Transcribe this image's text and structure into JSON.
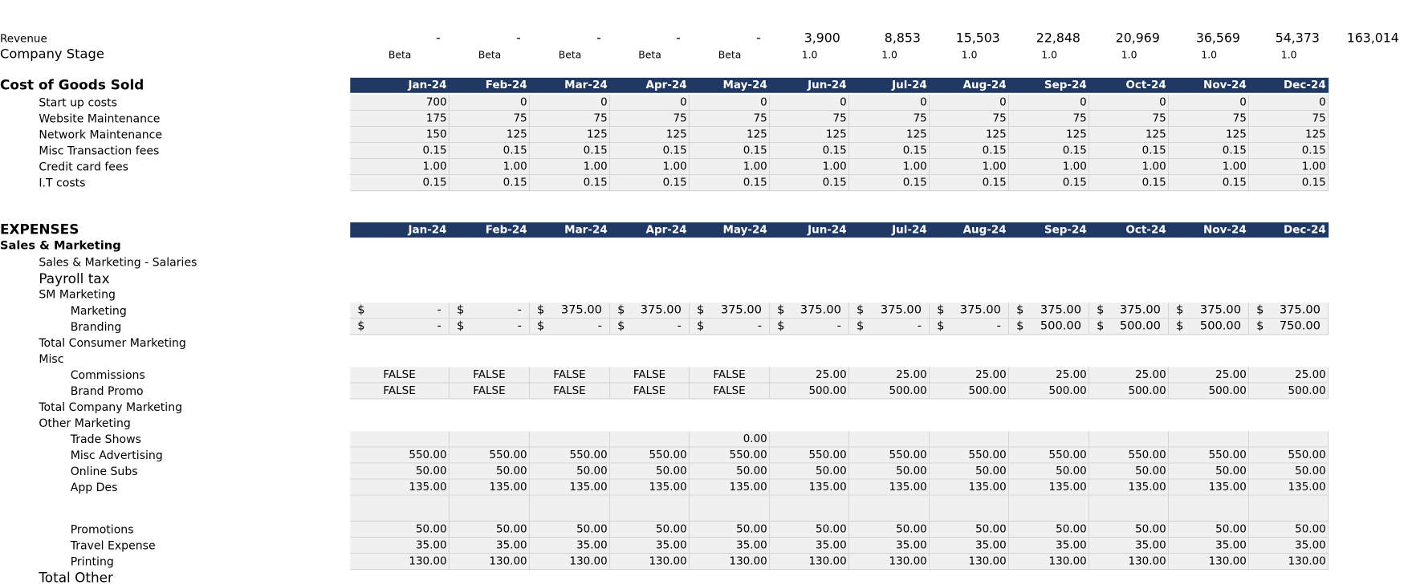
{
  "top": [
    {
      "label": "Revenue",
      "values": [
        "-",
        "-",
        "-",
        "-",
        "-",
        "3,900",
        "8,853",
        "15,503",
        "22,848",
        "20,969",
        "36,569",
        "54,373",
        "163,014"
      ]
    },
    {
      "label": "Company Stage",
      "values": [
        "Beta",
        "Beta",
        "Beta",
        "Beta",
        "Beta",
        "1.0",
        "1.0",
        "1.0",
        "1.0",
        "1.0",
        "1.0",
        "1.0"
      ]
    }
  ],
  "months": [
    "Jan-24",
    "Feb-24",
    "Mar-24",
    "Apr-24",
    "May-24",
    "Jun-24",
    "Jul-24",
    "Aug-24",
    "Sep-24",
    "Oct-24",
    "Nov-24",
    "Dec-24"
  ],
  "cogs": {
    "title": "Cost of Goods Sold",
    "rows": [
      {
        "label": "Start up costs",
        "values": [
          "700",
          "0",
          "0",
          "0",
          "0",
          "0",
          "0",
          "0",
          "0",
          "0",
          "0",
          "0"
        ]
      },
      {
        "label": "Website Maintenance",
        "values": [
          "175",
          "75",
          "75",
          "75",
          "75",
          "75",
          "75",
          "75",
          "75",
          "75",
          "75",
          "75"
        ]
      },
      {
        "label": "Network Maintenance",
        "values": [
          "150",
          "125",
          "125",
          "125",
          "125",
          "125",
          "125",
          "125",
          "125",
          "125",
          "125",
          "125"
        ]
      },
      {
        "label": "Misc Transaction fees",
        "values": [
          "0.15",
          "0.15",
          "0.15",
          "0.15",
          "0.15",
          "0.15",
          "0.15",
          "0.15",
          "0.15",
          "0.15",
          "0.15",
          "0.15"
        ]
      },
      {
        "label": "Credit card fees",
        "values": [
          "1.00",
          "1.00",
          "1.00",
          "1.00",
          "1.00",
          "1.00",
          "1.00",
          "1.00",
          "1.00",
          "1.00",
          "1.00",
          "1.00"
        ]
      },
      {
        "label": "I.T costs",
        "values": [
          "0.15",
          "0.15",
          "0.15",
          "0.15",
          "0.15",
          "0.15",
          "0.15",
          "0.15",
          "0.15",
          "0.15",
          "0.15",
          "0.15"
        ]
      }
    ]
  },
  "expenses": {
    "title": "EXPENSES",
    "currency": "$",
    "rows": [
      {
        "label": "Sales & Marketing"
      },
      {
        "label": "Sales & Marketing - Salaries"
      },
      {
        "label": "Payroll tax"
      },
      {
        "label": "SM Marketing"
      },
      {
        "label": "Marketing",
        "values": [
          "-",
          "-",
          "375.00",
          "375.00",
          "375.00",
          "375.00",
          "375.00",
          "375.00",
          "375.00",
          "375.00",
          "375.00",
          "375.00"
        ]
      },
      {
        "label": "Branding",
        "values": [
          "-",
          "-",
          "-",
          "-",
          "-",
          "-",
          "-",
          "-",
          "500.00",
          "500.00",
          "500.00",
          "750.00"
        ]
      },
      {
        "label": "Total Consumer Marketing"
      },
      {
        "label": "Misc"
      },
      {
        "label": "Commissions",
        "values": [
          "FALSE",
          "FALSE",
          "FALSE",
          "FALSE",
          "FALSE",
          "25.00",
          "25.00",
          "25.00",
          "25.00",
          "25.00",
          "25.00",
          "25.00"
        ]
      },
      {
        "label": "Brand Promo",
        "values": [
          "FALSE",
          "FALSE",
          "FALSE",
          "FALSE",
          "FALSE",
          "500.00",
          "500.00",
          "500.00",
          "500.00",
          "500.00",
          "500.00",
          "500.00"
        ]
      },
      {
        "label": "Total Company Marketing"
      },
      {
        "label": "Other Marketing"
      },
      {
        "label": "Trade Shows",
        "values": [
          null,
          null,
          null,
          null,
          "0.00",
          null,
          null,
          null,
          null,
          null,
          null,
          null
        ]
      },
      {
        "label": "Misc Advertising",
        "values": [
          "550.00",
          "550.00",
          "550.00",
          "550.00",
          "550.00",
          "550.00",
          "550.00",
          "550.00",
          "550.00",
          "550.00",
          "550.00",
          "550.00"
        ]
      },
      {
        "label": "Online Subs",
        "values": [
          "50.00",
          "50.00",
          "50.00",
          "50.00",
          "50.00",
          "50.00",
          "50.00",
          "50.00",
          "50.00",
          "50.00",
          "50.00",
          "50.00"
        ]
      },
      {
        "label": "App Des",
        "values": [
          "135.00",
          "135.00",
          "135.00",
          "135.00",
          "135.00",
          "135.00",
          "135.00",
          "135.00",
          "135.00",
          "135.00",
          "135.00",
          "135.00"
        ]
      },
      {
        "label": "Promotions",
        "values": [
          "50.00",
          "50.00",
          "50.00",
          "50.00",
          "50.00",
          "50.00",
          "50.00",
          "50.00",
          "50.00",
          "50.00",
          "50.00",
          "50.00"
        ]
      },
      {
        "label": "Travel Expense",
        "values": [
          "35.00",
          "35.00",
          "35.00",
          "35.00",
          "35.00",
          "35.00",
          "35.00",
          "35.00",
          "35.00",
          "35.00",
          "35.00",
          "35.00"
        ]
      },
      {
        "label": "Printing",
        "values": [
          "130.00",
          "130.00",
          "130.00",
          "130.00",
          "130.00",
          "130.00",
          "130.00",
          "130.00",
          "130.00",
          "130.00",
          "130.00",
          "130.00"
        ]
      },
      {
        "label": "Total Other"
      }
    ]
  }
}
